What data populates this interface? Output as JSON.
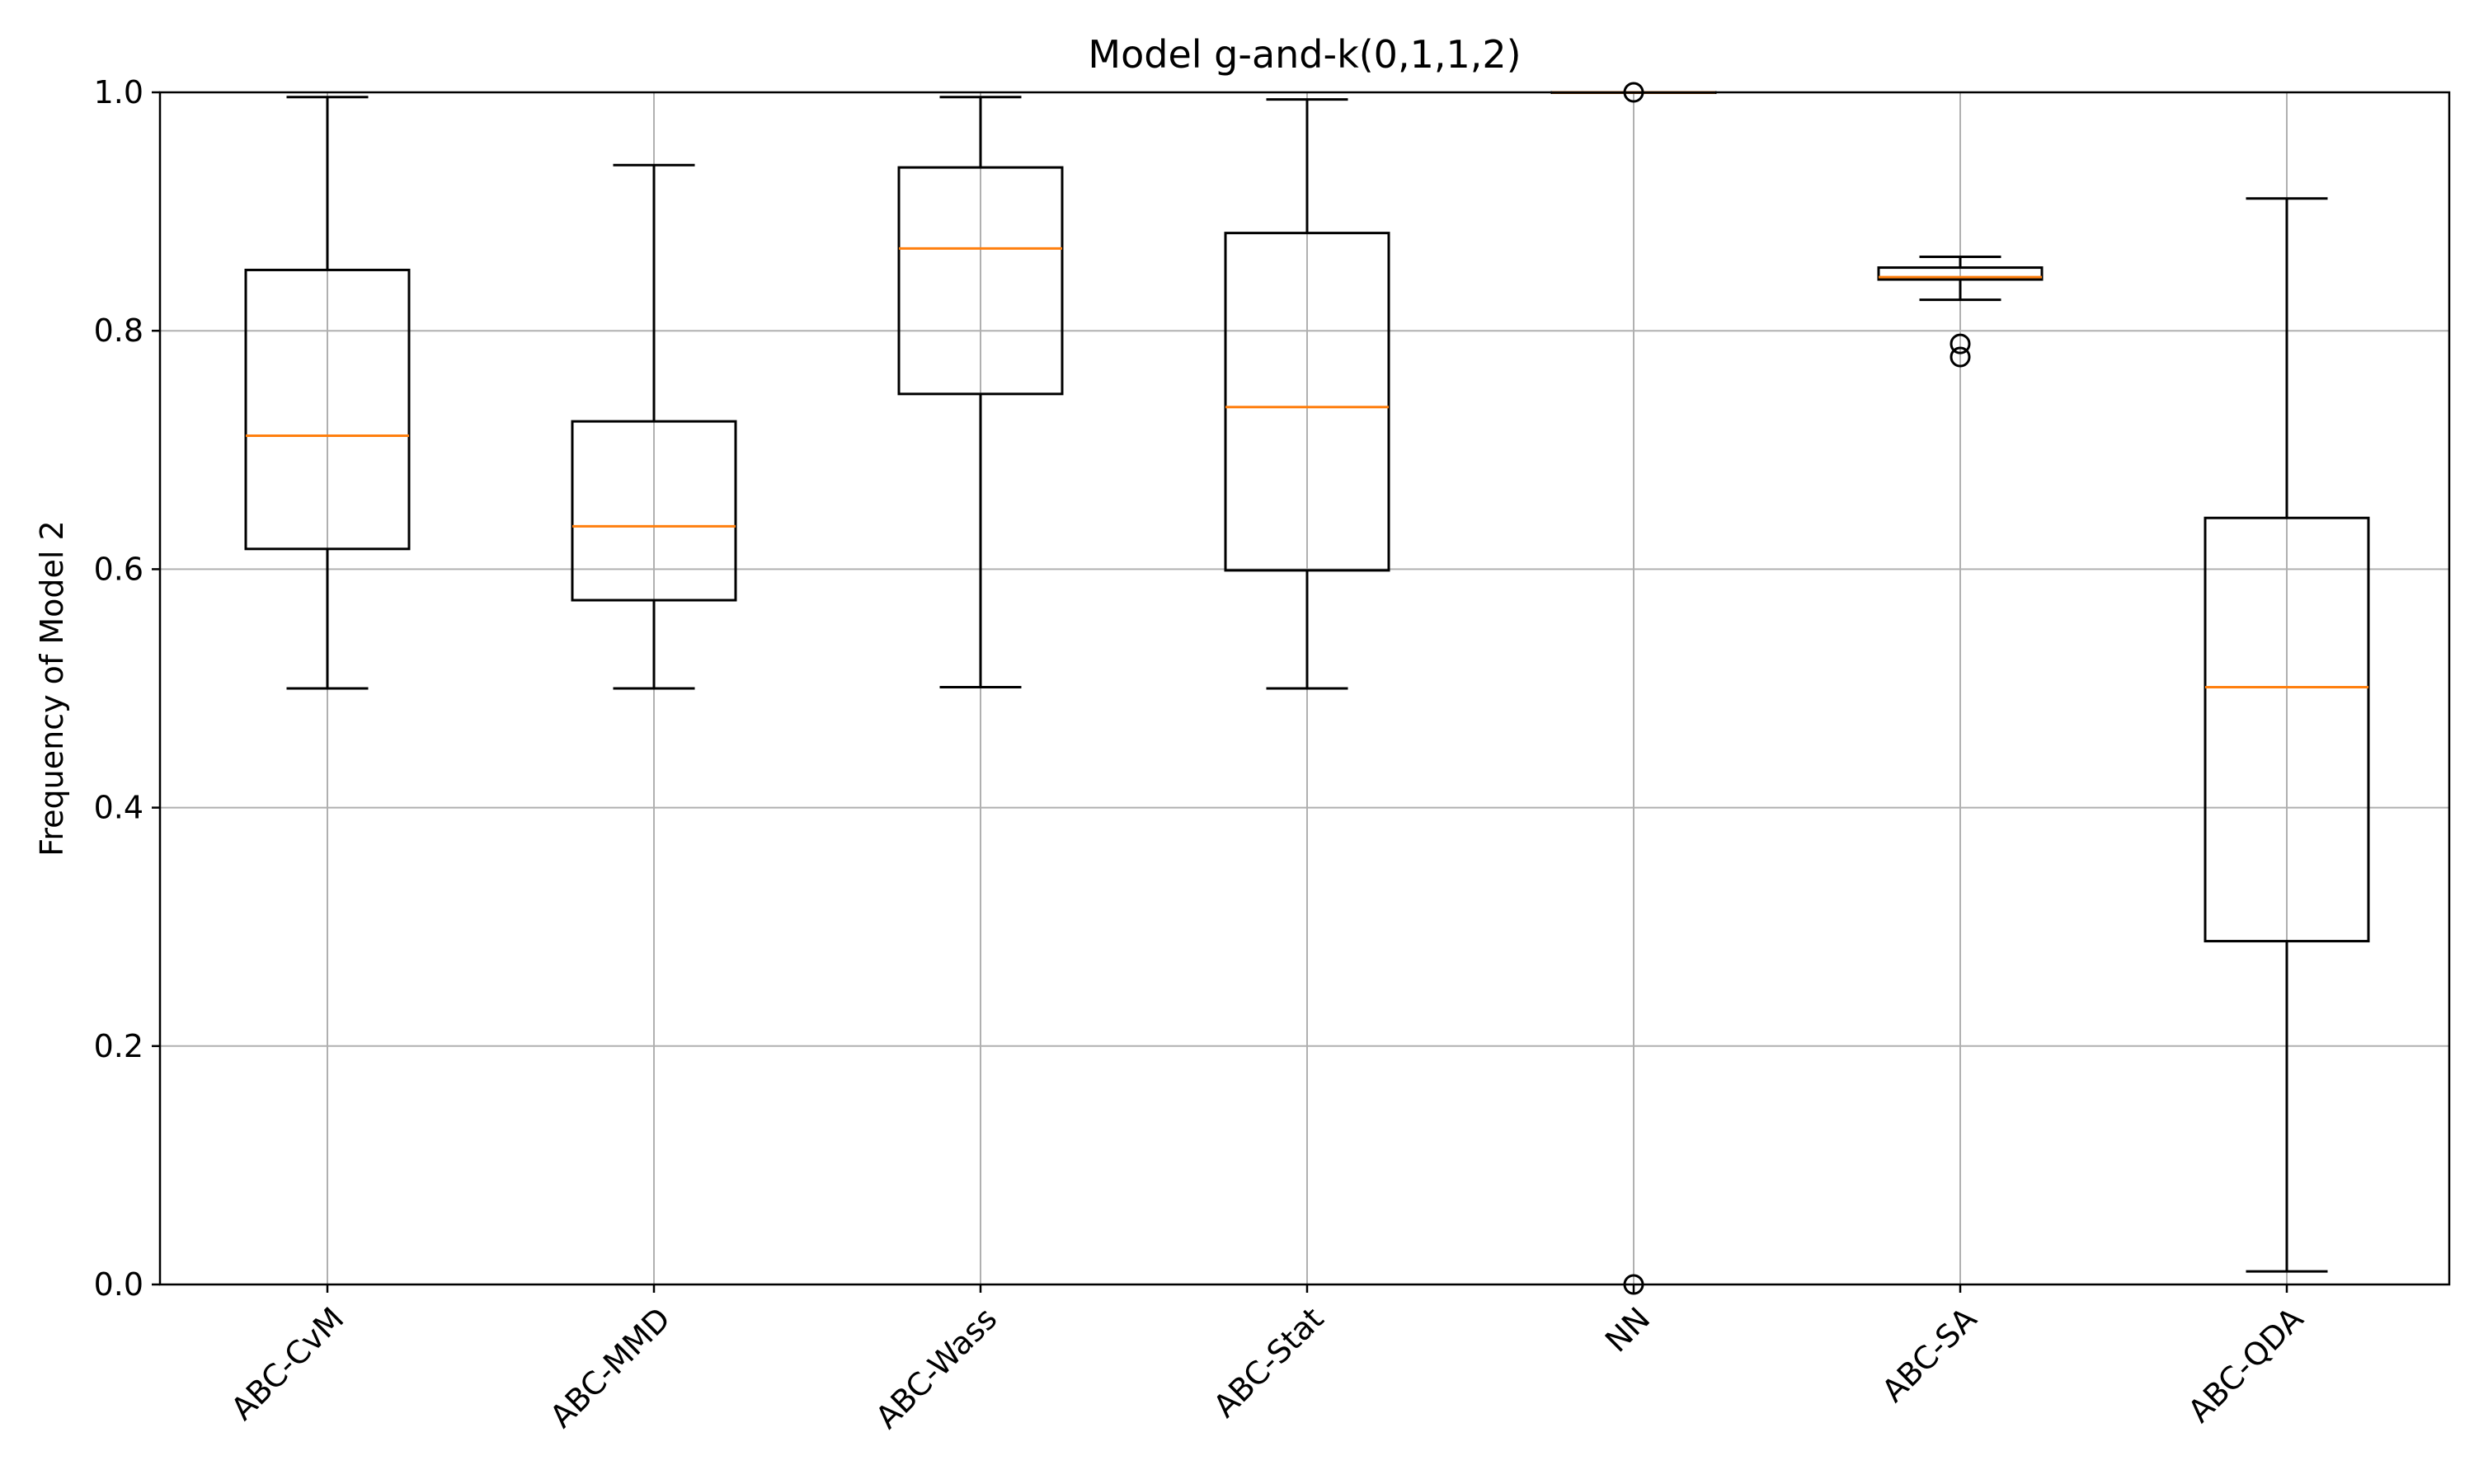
{
  "chart_data": {
    "type": "boxplot",
    "title": "Model g-and-k(0,1,1,2)",
    "xlabel": "",
    "ylabel": "Frequency of Model 2",
    "ylim": [
      0.0,
      1.0
    ],
    "yticks": [
      0.0,
      0.2,
      0.4,
      0.6,
      0.8,
      1.0
    ],
    "ytick_labels": [
      "0.0",
      "0.2",
      "0.4",
      "0.6",
      "0.8",
      "1.0"
    ],
    "grid": true,
    "colors": {
      "box": "#000000",
      "median": "#ff7f0e",
      "grid": "#b0b0b0"
    },
    "categories": [
      "ABC-CvM",
      "ABC-MMD",
      "ABC-Wass",
      "ABC-Stat",
      "NN",
      "ABC-SA",
      "ABC-QDA"
    ],
    "boxes": [
      {
        "name": "ABC-CvM",
        "whisker_low": 0.5,
        "q1": 0.617,
        "median": 0.712,
        "q3": 0.851,
        "whisker_high": 0.996,
        "outliers": []
      },
      {
        "name": "ABC-MMD",
        "whisker_low": 0.5,
        "q1": 0.574,
        "median": 0.636,
        "q3": 0.724,
        "whisker_high": 0.939,
        "outliers": []
      },
      {
        "name": "ABC-Wass",
        "whisker_low": 0.501,
        "q1": 0.747,
        "median": 0.869,
        "q3": 0.937,
        "whisker_high": 0.996,
        "outliers": []
      },
      {
        "name": "ABC-Stat",
        "whisker_low": 0.5,
        "q1": 0.599,
        "median": 0.736,
        "q3": 0.882,
        "whisker_high": 0.994,
        "outliers": []
      },
      {
        "name": "NN",
        "whisker_low": 1.0,
        "q1": 1.0,
        "median": 1.0,
        "q3": 1.0,
        "whisker_high": 1.0,
        "outliers": [
          0.0,
          1.0
        ]
      },
      {
        "name": "ABC-SA",
        "whisker_low": 0.826,
        "q1": 0.843,
        "median": 0.845,
        "q3": 0.853,
        "whisker_high": 0.862,
        "outliers": [
          0.789,
          0.778
        ]
      },
      {
        "name": "ABC-QDA",
        "whisker_low": 0.011,
        "q1": 0.288,
        "median": 0.501,
        "q3": 0.643,
        "whisker_high": 0.911,
        "outliers": []
      }
    ]
  }
}
